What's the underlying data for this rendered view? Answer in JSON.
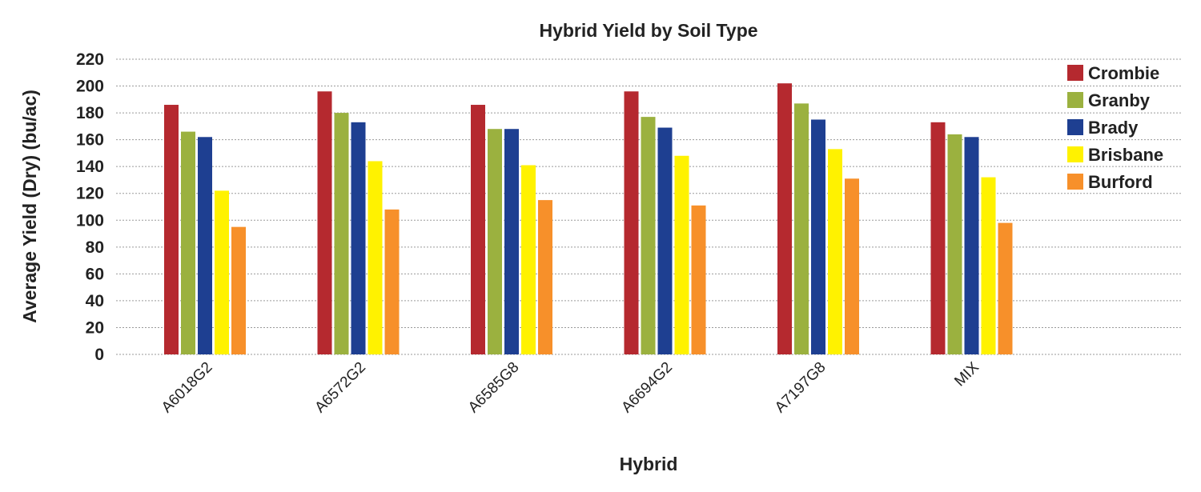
{
  "chart_data": {
    "type": "bar",
    "title": "Hybrid Yield by Soil Type",
    "xlabel": "Hybrid",
    "ylabel": "Average Yield (Dry) (bu/ac)",
    "ylim": [
      0,
      220
    ],
    "yticks": [
      0,
      20,
      40,
      60,
      80,
      100,
      120,
      140,
      160,
      180,
      200,
      220
    ],
    "grid": true,
    "legend_position": "top-right",
    "categories": [
      "A6018G2",
      "A6572G2",
      "A6585G8",
      "A6694G2",
      "A7197G8",
      "MIX"
    ],
    "series": [
      {
        "name": "Crombie",
        "color": "#b5292f",
        "values": [
          186,
          196,
          186,
          196,
          202,
          173
        ]
      },
      {
        "name": "Granby",
        "color": "#9bb13f",
        "values": [
          166,
          180,
          168,
          177,
          187,
          164
        ]
      },
      {
        "name": "Brady",
        "color": "#1e3f91",
        "values": [
          162,
          173,
          168,
          169,
          175,
          162
        ]
      },
      {
        "name": "Brisbane",
        "color": "#fff200",
        "values": [
          122,
          144,
          141,
          148,
          153,
          132
        ]
      },
      {
        "name": "Burford",
        "color": "#f7902a",
        "values": [
          95,
          108,
          115,
          111,
          131,
          98
        ]
      }
    ]
  }
}
